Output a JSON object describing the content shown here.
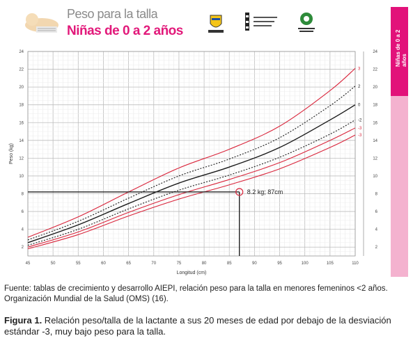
{
  "header": {
    "title_line1": "Peso para la talla",
    "title_line2": "Niñas de 0 a 2 años",
    "side_label": "Niñas de 0 a 2 años"
  },
  "footer": {
    "source": "Fuente: tablas de crecimiento y desarrollo AIEPI, relación peso para la talla en menores femeninos <2 años. Organización Mundial de la Salud (OMS) (16).",
    "caption_label": "Figura 1.",
    "caption_text": " Relación peso/talla de la lactante a sus 20 meses de edad por debajo de la desviación estándar -3, muy bajo peso para la talla."
  },
  "colors": {
    "pink": "#e2127a",
    "light_pink": "#f4b2cf",
    "curve_red": "#d9253b",
    "curve_dark": "#1a1a1a",
    "grid": "#c8c8c8"
  },
  "chart_data": {
    "type": "line",
    "xlabel": "Longitud (cm)",
    "ylabel": "Peso (kg)",
    "xlim": [
      45,
      110
    ],
    "ylim": [
      1,
      24
    ],
    "x_ticks": [
      "45",
      "50",
      "55",
      "60",
      "65",
      "70",
      "75",
      "80",
      "85",
      "90",
      "95",
      "100",
      "105",
      "110"
    ],
    "y_ticks": [
      "2",
      "4",
      "6",
      "8",
      "10",
      "12",
      "14",
      "16",
      "18",
      "20",
      "22",
      "24"
    ],
    "grid": true,
    "series": [
      {
        "name": "3",
        "style": "red-solid",
        "x": [
          45,
          55,
          65,
          75,
          85,
          95,
          105,
          110
        ],
        "y": [
          3.1,
          5.4,
          8.2,
          10.9,
          13.0,
          15.6,
          19.6,
          22.1
        ]
      },
      {
        "name": "2",
        "style": "dark-dotted",
        "x": [
          45,
          55,
          65,
          75,
          85,
          95,
          105,
          110
        ],
        "y": [
          2.8,
          4.9,
          7.5,
          10.0,
          11.9,
          14.3,
          17.9,
          20.1
        ]
      },
      {
        "name": "0",
        "style": "dark-solid",
        "x": [
          45,
          55,
          65,
          75,
          85,
          95,
          105,
          110
        ],
        "y": [
          2.5,
          4.5,
          6.9,
          9.2,
          11.0,
          13.2,
          16.3,
          18.0
        ]
      },
      {
        "name": "-2",
        "style": "dark-dotted",
        "x": [
          45,
          55,
          65,
          75,
          85,
          95,
          105,
          110
        ],
        "y": [
          2.2,
          4.0,
          6.3,
          8.4,
          10.1,
          12.1,
          14.7,
          16.3
        ]
      },
      {
        "name": "-3",
        "style": "red-solid",
        "x": [
          45,
          55,
          65,
          75,
          85,
          95,
          105,
          110
        ],
        "y": [
          2.0,
          3.7,
          5.9,
          7.9,
          9.6,
          11.5,
          14.0,
          15.4
        ]
      },
      {
        "name": "-3",
        "style": "red-solid",
        "x": [
          45,
          55,
          65,
          75,
          85,
          95,
          105,
          110
        ],
        "y": [
          1.8,
          3.4,
          5.5,
          7.4,
          9.0,
          10.8,
          13.2,
          14.6
        ]
      }
    ],
    "right_labels": [
      "3",
      "2",
      "0",
      "-2",
      "-3",
      "-3"
    ],
    "annotation": {
      "x": 87,
      "y": 8.2,
      "text": "8.2 kg; 87cm"
    }
  }
}
